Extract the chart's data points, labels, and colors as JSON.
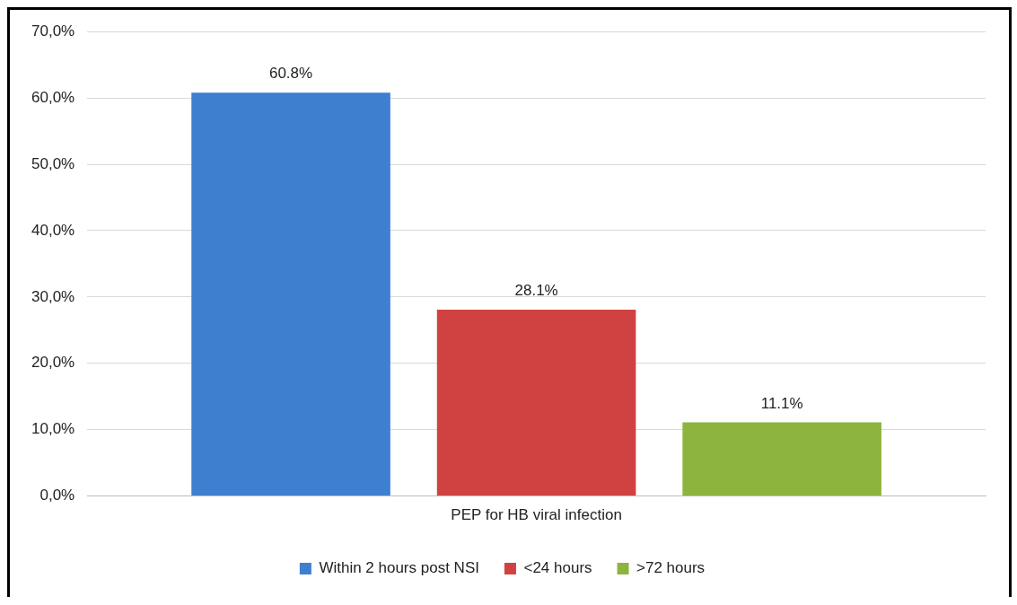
{
  "chart_data": {
    "type": "bar",
    "categories": [
      "PEP for HB viral infection"
    ],
    "series": [
      {
        "name": "Within 2 hours post NSI",
        "color": "#3f7fcf",
        "values": [
          60.8
        ],
        "value_labels": [
          "60.8%"
        ]
      },
      {
        "name": "<24 hours",
        "color": "#d04242",
        "values": [
          28.1
        ],
        "value_labels": [
          "28.1%"
        ]
      },
      {
        "name": ">72 hours",
        "color": "#8db43e",
        "values": [
          11.1
        ],
        "value_labels": [
          "11.1%"
        ]
      }
    ],
    "ylim": [
      0,
      70
    ],
    "yticks": [
      {
        "value": 0,
        "label": "0,0%"
      },
      {
        "value": 10,
        "label": "10,0%"
      },
      {
        "value": 20,
        "label": "20,0%"
      },
      {
        "value": 30,
        "label": "30,0%"
      },
      {
        "value": 40,
        "label": "40,0%"
      },
      {
        "value": 50,
        "label": "50,0%"
      },
      {
        "value": 60,
        "label": "60,0%"
      },
      {
        "value": 70,
        "label": "70,0%"
      }
    ],
    "grid": "y",
    "legend": "bottom"
  }
}
